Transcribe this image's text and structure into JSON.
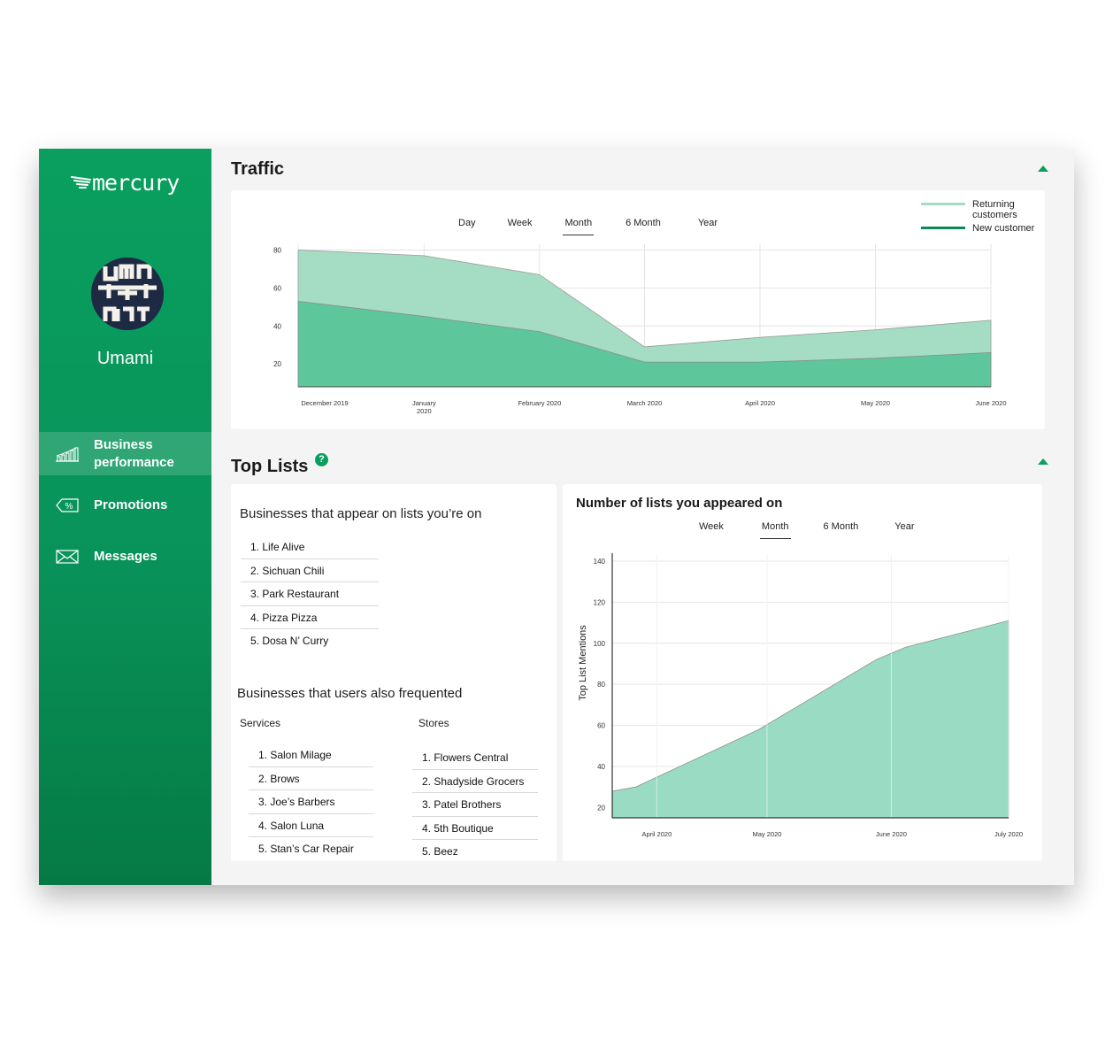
{
  "brand": {
    "name": "mercury"
  },
  "profile": {
    "name": "Umami"
  },
  "nav": [
    {
      "label": "Business\nperformance",
      "icon": "bar-chart-icon",
      "active": true
    },
    {
      "label": "Promotions",
      "icon": "percent-tag-icon",
      "active": false
    },
    {
      "label": "Messages",
      "icon": "envelope-icon",
      "active": false
    }
  ],
  "traffic": {
    "title": "Traffic",
    "tabs": [
      "Day",
      "Week",
      "Month",
      "6 Month",
      "Year"
    ],
    "active_tab": "Month",
    "legend": [
      {
        "label": "Returning customers",
        "color": "#a4dcc4"
      },
      {
        "label": "New customer",
        "color": "#0a8a55"
      }
    ]
  },
  "toplists": {
    "title": "Top Lists",
    "help_label": "?",
    "appear_heading": "Businesses that appear on lists you’re on",
    "appear_list": [
      "1. Life Alive",
      "2. Sichuan Chili",
      "3. Park Restaurant",
      "4. Pizza Pizza",
      "5. Dosa N’ Curry"
    ],
    "frequented_heading": "Businesses that users also frequented",
    "services_heading": "Services",
    "services": [
      "1. Salon Milage",
      "2. Brows",
      "3. Joe’s Barbers",
      "4. Salon Luna",
      "5. Stan’s Car Repair"
    ],
    "stores_heading": "Stores",
    "stores": [
      "1. Flowers Central",
      "2. Shadyside Grocers",
      "3. Patel Brothers",
      "4. 5th Boutique",
      "5. Beez"
    ]
  },
  "lists_chart": {
    "title": "Number of lists you appeared on",
    "tabs": [
      "Week",
      "Month",
      "6 Month",
      "Year"
    ],
    "active_tab": "Month"
  },
  "chart_data": [
    {
      "type": "area",
      "categories": [
        "December 2019",
        "January 2020",
        "February 2020",
        "March 2020",
        "April 2020",
        "May 2020",
        "June 2020"
      ],
      "x_positions": [
        0,
        1.2,
        2.3,
        3.3,
        4.4,
        5.5,
        6.6
      ],
      "series": [
        {
          "name": "Returning customers",
          "values": [
            80,
            77,
            67,
            29,
            34,
            38,
            43
          ],
          "color": "#a4dcc4"
        },
        {
          "name": "New customer",
          "values": [
            53,
            45,
            37,
            21,
            21,
            23,
            26
          ],
          "color": "#5dc79b"
        }
      ],
      "yticks": [
        20,
        40,
        60,
        80
      ],
      "ylim": [
        8,
        83
      ],
      "xlim": [
        0,
        6.6
      ],
      "grid": true
    },
    {
      "type": "area",
      "categories": [
        "April 2020",
        "May 2020",
        "June 2020",
        "July 2020"
      ],
      "x_positions": [
        0.38,
        1.32,
        2.38,
        3.38
      ],
      "series": [
        {
          "values": [
            {
              "x": 0,
              "y": 28
            },
            {
              "x": 0.2,
              "y": 30
            },
            {
              "x": 1.25,
              "y": 58
            },
            {
              "x": 2.25,
              "y": 92
            },
            {
              "x": 2.5,
              "y": 98
            },
            {
              "x": 3.38,
              "y": 111
            }
          ],
          "color": "#9adcc3"
        }
      ],
      "ylabel": "Top List Mentions",
      "yticks": [
        20,
        40,
        60,
        80,
        100,
        120,
        140
      ],
      "ylim": [
        15,
        143
      ],
      "xlim": [
        0,
        3.38
      ],
      "grid": true
    }
  ]
}
